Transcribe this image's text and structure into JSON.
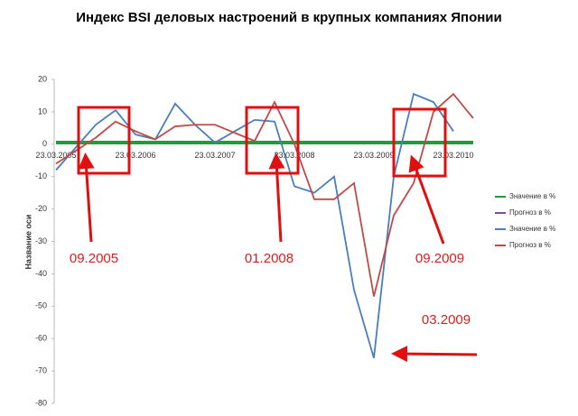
{
  "chart_data": {
    "type": "line",
    "title": "Индекс BSI деловых настроений в крупных компаниях Японии",
    "y_label": "Название оси",
    "categories": [
      "23.03.2005",
      null,
      null,
      null,
      "23.03.2006",
      null,
      null,
      null,
      "23.03.2007",
      null,
      null,
      null,
      "23.03.2008",
      null,
      null,
      null,
      "23.03.2009",
      null,
      null,
      null,
      "23.03.2010",
      null
    ],
    "series": [
      {
        "name": "Значение в %",
        "color": "#1f9d3a",
        "values": [
          0.5,
          0.5,
          0.5,
          0.5,
          0.5,
          0.5,
          0.5,
          0.5,
          0.5,
          0.5,
          0.5,
          0.5,
          0.5,
          0.5,
          0.5,
          0.5,
          0.5,
          0.5,
          0.5,
          0.5,
          0.5,
          0.5
        ]
      },
      {
        "name": "Прогноз в %",
        "color": "#7b4fa0",
        "values": [
          null,
          null,
          null,
          null,
          null,
          null,
          null,
          null,
          null,
          null,
          null,
          null,
          null,
          null,
          null,
          null,
          null,
          null,
          null,
          null,
          null,
          null
        ]
      },
      {
        "name": "Значение в %",
        "color": "#4a7ebb",
        "values": [
          -8,
          -1,
          6,
          10.5,
          3,
          1.5,
          12.5,
          6,
          0.5,
          4,
          7.5,
          7,
          -13,
          -15,
          -10,
          -45,
          -66,
          -10,
          15.5,
          13,
          4,
          null
        ]
      },
      {
        "name": "Прогноз в %",
        "color": "#be4b48",
        "values": [
          -6,
          -2,
          2,
          7,
          4,
          1.5,
          5.5,
          6,
          6,
          3.5,
          1,
          13,
          0,
          -17,
          -17,
          -12,
          -47,
          -22,
          -12,
          10,
          15.5,
          8
        ]
      }
    ],
    "ylim": [
      -80,
      20
    ],
    "yticks": [
      -80,
      -70,
      -60,
      -50,
      -40,
      -30,
      -20,
      -10,
      0,
      10,
      20
    ],
    "annotations": [
      "09.2005",
      "01.2008",
      "09.2009",
      "03.2009"
    ]
  }
}
